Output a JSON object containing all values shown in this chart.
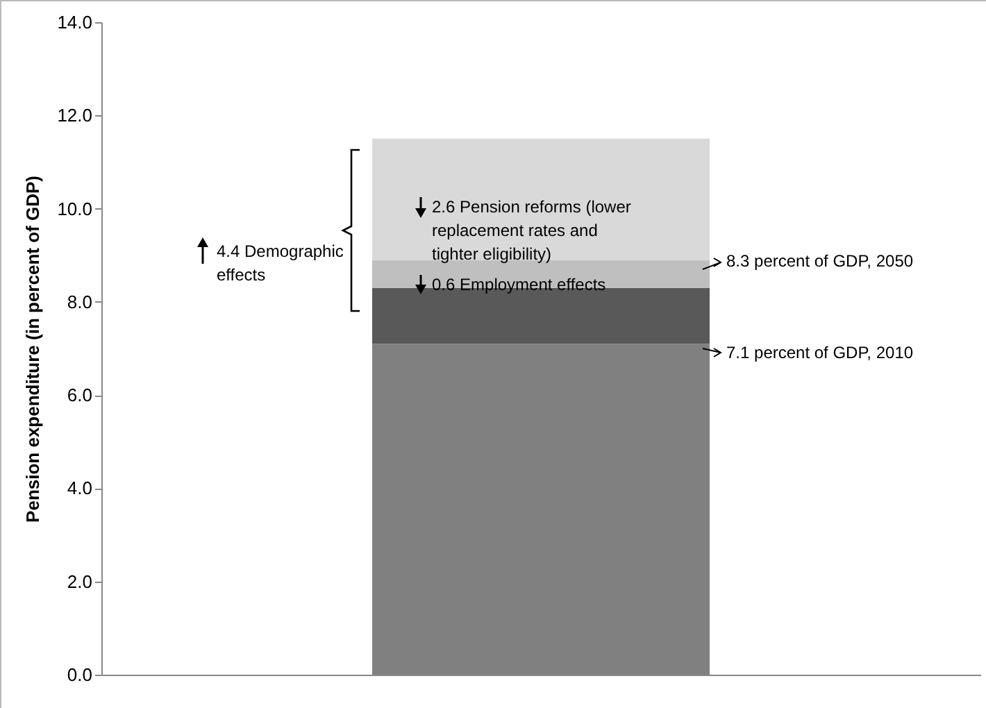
{
  "chart_data": {
    "type": "bar",
    "stacked": true,
    "categories": [
      null
    ],
    "series": [
      {
        "color": "#808080",
        "values": [
          7.1
        ]
      },
      {
        "color": "#595959",
        "values": [
          1.2
        ]
      },
      {
        "color": "#bfbfbf",
        "values": [
          0.6
        ]
      },
      {
        "color": "#d9d9d9",
        "values": [
          2.6
        ]
      }
    ],
    "ylabel": "Pension expenditure (in percent of GDP)",
    "ylim": [
      0,
      14
    ],
    "yticks": [
      {
        "value": 0,
        "label": "0.0"
      },
      {
        "value": 2,
        "label": "2.0"
      },
      {
        "value": 4,
        "label": "4.0"
      },
      {
        "value": 6,
        "label": "6.0"
      },
      {
        "value": 8,
        "label": "8.0"
      },
      {
        "value": 10,
        "label": "10.0"
      },
      {
        "value": 12,
        "label": "12.0"
      },
      {
        "value": 14,
        "label": "14.0"
      }
    ],
    "annotations": [
      "4.4 Demographic effects",
      "2.6 Pension reforms (lower replacement rates and tighter eligibility)",
      "0.6 Employment effects",
      "8.3 percent of GDP, 2050",
      "7.1 percent of GDP, 2010"
    ],
    "grid": false,
    "legend": false
  }
}
